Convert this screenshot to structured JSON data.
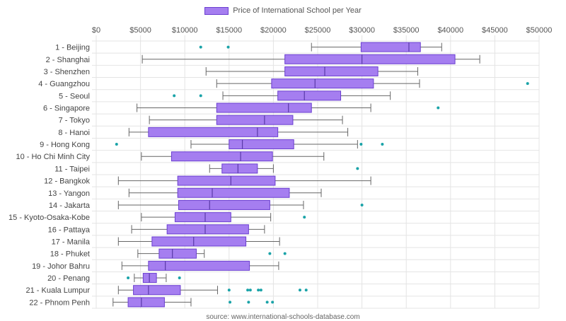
{
  "legend": {
    "label": "Price of International School per Year"
  },
  "source_note": "source: www.international-schools-database.com",
  "colors": {
    "box_fill": "#a57ef0",
    "box_stroke": "#6b3fd0",
    "whisker": "#666666",
    "outlier": "#1aa3a8",
    "grid": "#e4e4e4",
    "text": "#555555"
  },
  "chart_data": {
    "type": "boxplot",
    "orientation": "horizontal",
    "series_name": "Price of International School per Year",
    "x_ticks": [
      "$0",
      "$5000",
      "$10000",
      "$15000",
      "$20000",
      "$25000",
      "$30000",
      "$35000",
      "$40000",
      "$45000",
      "$50000"
    ],
    "xlim": [
      0,
      50000
    ],
    "grid": true,
    "legend_position": "top-center",
    "categories": [
      {
        "label": "1 - Beijing",
        "min": 24300,
        "q1": 29900,
        "median": 35300,
        "q3": 36600,
        "max": 39000,
        "outliers": [
          11800,
          14900
        ]
      },
      {
        "label": "2 - Shanghai",
        "min": 5200,
        "q1": 21300,
        "median": 30000,
        "q3": 40500,
        "max": 43300,
        "outliers": []
      },
      {
        "label": "3 - Shenzhen",
        "min": 12400,
        "q1": 21300,
        "median": 25800,
        "q3": 31800,
        "max": 36300,
        "outliers": []
      },
      {
        "label": "4 - Guangzhou",
        "min": 13600,
        "q1": 19800,
        "median": 24700,
        "q3": 31300,
        "max": 36500,
        "outliers": [
          48700
        ]
      },
      {
        "label": "5 - Seoul",
        "min": 14300,
        "q1": 20500,
        "median": 23500,
        "q3": 27600,
        "max": 33200,
        "outliers": [
          8800,
          11800
        ]
      },
      {
        "label": "6 - Singapore",
        "min": 4600,
        "q1": 13600,
        "median": 21700,
        "q3": 24300,
        "max": 31000,
        "outliers": [
          38600
        ]
      },
      {
        "label": "7 - Tokyo",
        "min": 6000,
        "q1": 13600,
        "median": 19000,
        "q3": 22200,
        "max": 27800,
        "outliers": []
      },
      {
        "label": "8 - Hanoi",
        "min": 3700,
        "q1": 5900,
        "median": 18200,
        "q3": 20500,
        "max": 28400,
        "outliers": []
      },
      {
        "label": "9 - Hong Kong",
        "min": 10700,
        "q1": 15000,
        "median": 16500,
        "q3": 22300,
        "max": 29500,
        "outliers": [
          2300,
          29900,
          32300
        ]
      },
      {
        "label": "10 - Ho Chi Minh City",
        "min": 5100,
        "q1": 8500,
        "median": 16300,
        "q3": 19900,
        "max": 25700,
        "outliers": []
      },
      {
        "label": "11 - Taipei",
        "min": 12800,
        "q1": 14200,
        "median": 16000,
        "q3": 18200,
        "max": 20000,
        "outliers": [
          29500
        ]
      },
      {
        "label": "12 - Bangkok",
        "min": 2500,
        "q1": 9200,
        "median": 15200,
        "q3": 20200,
        "max": 31000,
        "outliers": []
      },
      {
        "label": "13 - Yangon",
        "min": 3700,
        "q1": 9200,
        "median": 13100,
        "q3": 21800,
        "max": 25400,
        "outliers": []
      },
      {
        "label": "14 - Jakarta",
        "min": 2500,
        "q1": 9300,
        "median": 12800,
        "q3": 19600,
        "max": 23400,
        "outliers": [
          30000
        ]
      },
      {
        "label": "15 - Kyoto-Osaka-Kobe",
        "min": 5100,
        "q1": 8900,
        "median": 12300,
        "q3": 15200,
        "max": 19700,
        "outliers": [
          23500
        ]
      },
      {
        "label": "16 - Pattaya",
        "min": 4000,
        "q1": 8000,
        "median": 12300,
        "q3": 17200,
        "max": 19000,
        "outliers": []
      },
      {
        "label": "17 - Manila",
        "min": 2500,
        "q1": 6300,
        "median": 11000,
        "q3": 16900,
        "max": 20700,
        "outliers": []
      },
      {
        "label": "18 - Phuket",
        "min": 4700,
        "q1": 7100,
        "median": 8600,
        "q3": 11300,
        "max": 12200,
        "outliers": [
          19600,
          21300
        ]
      },
      {
        "label": "19 - Johor Bahru",
        "min": 2900,
        "q1": 5900,
        "median": 7800,
        "q3": 17300,
        "max": 20600,
        "outliers": []
      },
      {
        "label": "20 - Penang",
        "min": 4300,
        "q1": 5300,
        "median": 6000,
        "q3": 6800,
        "max": 7900,
        "outliers": [
          3600,
          9400
        ]
      },
      {
        "label": "21 - Kuala Lumpur",
        "min": 2500,
        "q1": 4200,
        "median": 5900,
        "q3": 9500,
        "max": 13700,
        "outliers": [
          15000,
          17100,
          17400,
          18300,
          18600,
          23000,
          23700
        ]
      },
      {
        "label": "22 - Phnom Penh",
        "min": 1900,
        "q1": 3600,
        "median": 5100,
        "q3": 7700,
        "max": 10700,
        "outliers": [
          15100,
          17200,
          19300,
          19900
        ]
      }
    ]
  }
}
